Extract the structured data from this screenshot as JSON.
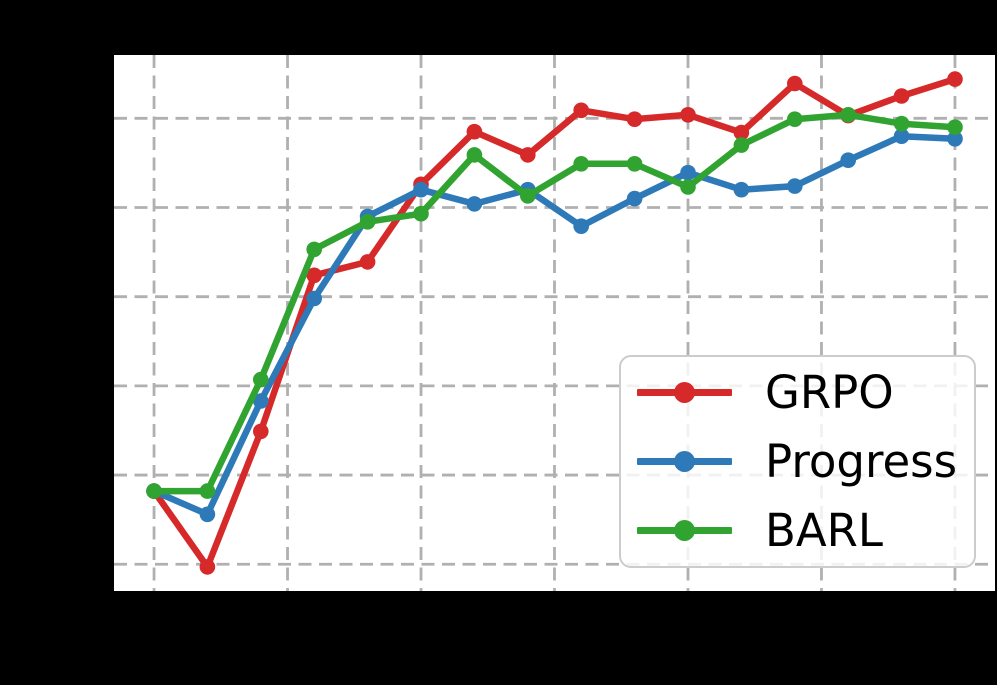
{
  "window": {
    "background_color": "#000000",
    "plot_background_color": "#ffffff"
  },
  "chart_data": {
    "type": "line",
    "title": "",
    "xlabel": "",
    "ylabel": "",
    "x": [
      0,
      20,
      40,
      60,
      80,
      100,
      120,
      140,
      160,
      180,
      200,
      220,
      240,
      260,
      280,
      300
    ],
    "series": [
      {
        "name": "GRPO",
        "color": "#d62a2a",
        "values": [
          0.382,
          0.297,
          0.449,
          0.624,
          0.639,
          0.726,
          0.785,
          0.759,
          0.809,
          0.799,
          0.804,
          0.784,
          0.839,
          0.803,
          0.825,
          0.844
        ]
      },
      {
        "name": "Progress",
        "color": "#2e79b8",
        "values": [
          0.382,
          0.356,
          0.483,
          0.598,
          0.69,
          0.72,
          0.704,
          0.72,
          0.679,
          0.71,
          0.739,
          0.72,
          0.724,
          0.753,
          0.78,
          0.777
        ]
      },
      {
        "name": "BARL",
        "color": "#31a331",
        "values": [
          0.382,
          0.382,
          0.507,
          0.653,
          0.684,
          0.693,
          0.759,
          0.713,
          0.749,
          0.749,
          0.723,
          0.77,
          0.799,
          0.804,
          0.794,
          0.79
        ]
      }
    ],
    "xlim": [
      -15,
      315
    ],
    "ylim": [
      0.27,
      0.871
    ],
    "xticks": [
      0,
      50,
      100,
      150,
      200,
      250,
      300
    ],
    "yticks": [
      0.3,
      0.4,
      0.5,
      0.6,
      0.7,
      0.8
    ],
    "tick_labels_visible": false,
    "grid": "dashed",
    "gridline_color": "#b0b0b0",
    "line_width": 6.5,
    "marker": "circle",
    "marker_radius": 7.8,
    "legend_position": "lower right"
  },
  "legend": {
    "entries": [
      {
        "label": "GRPO"
      },
      {
        "label": "Progress"
      },
      {
        "label": "BARL"
      }
    ]
  }
}
